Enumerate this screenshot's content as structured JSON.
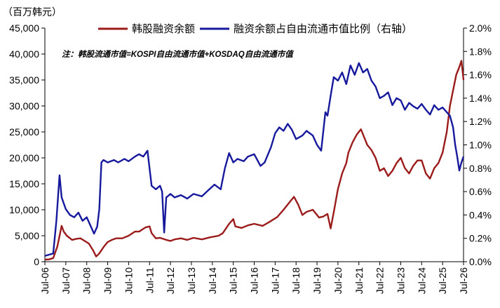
{
  "chart_data": {
    "type": "line",
    "title": "",
    "unit_label": "（百万韩元）",
    "note": "注：韩股流通市值=KOSPI自由流通市值+KOSDAQ自由流通市值",
    "legend_placement": "top",
    "grid": false,
    "x_tick_labels": [
      "Jul-06",
      "Jul-07",
      "Jul-08",
      "Jul-09",
      "Jul-10",
      "Jul-11",
      "Jul-12",
      "Jul-13",
      "Jul-14",
      "Jul-15",
      "Jul-16",
      "Jul-17",
      "Jul-18",
      "Jul-19",
      "Jul-20",
      "Jul-21",
      "Jul-22",
      "Jul-23",
      "Jul-24",
      "Jul-25",
      "Jul-26"
    ],
    "x_range": [
      2006.5,
      2026.5
    ],
    "y_left": {
      "min": 0,
      "max": 45000,
      "step": 5000,
      "tick_labels": [
        "0",
        "5,000",
        "10,000",
        "15,000",
        "20,000",
        "25,000",
        "30,000",
        "35,000",
        "40,000",
        "45,000"
      ]
    },
    "y_right": {
      "min": 0,
      "max": 2.0,
      "step": 0.2,
      "tick_labels": [
        "0.0%",
        "0.2%",
        "0.4%",
        "0.6%",
        "0.8%",
        "1.0%",
        "1.2%",
        "1.4%",
        "1.6%",
        "1.8%",
        "2.0%"
      ]
    },
    "series": [
      {
        "name": "韩股融资余额",
        "axis": "left",
        "color": "#9b1b1b",
        "points": [
          [
            2006.5,
            400
          ],
          [
            2006.7,
            450
          ],
          [
            2006.9,
            700
          ],
          [
            2007.1,
            3000
          ],
          [
            2007.3,
            6900
          ],
          [
            2007.4,
            5800
          ],
          [
            2007.55,
            5000
          ],
          [
            2007.8,
            4200
          ],
          [
            2008.0,
            4400
          ],
          [
            2008.2,
            4500
          ],
          [
            2008.4,
            4000
          ],
          [
            2008.6,
            3500
          ],
          [
            2008.8,
            2200
          ],
          [
            2008.95,
            1000
          ],
          [
            2009.1,
            1600
          ],
          [
            2009.3,
            2800
          ],
          [
            2009.5,
            3800
          ],
          [
            2009.7,
            4200
          ],
          [
            2009.9,
            4500
          ],
          [
            2010.2,
            4500
          ],
          [
            2010.5,
            5000
          ],
          [
            2010.8,
            5800
          ],
          [
            2011.0,
            5800
          ],
          [
            2011.3,
            6600
          ],
          [
            2011.5,
            6800
          ],
          [
            2011.6,
            5500
          ],
          [
            2011.8,
            4500
          ],
          [
            2012.0,
            4600
          ],
          [
            2012.3,
            4200
          ],
          [
            2012.5,
            4000
          ],
          [
            2012.7,
            4300
          ],
          [
            2013.0,
            4500
          ],
          [
            2013.3,
            4200
          ],
          [
            2013.6,
            4600
          ],
          [
            2014.0,
            4300
          ],
          [
            2014.4,
            4700
          ],
          [
            2014.8,
            5000
          ],
          [
            2015.0,
            5500
          ],
          [
            2015.3,
            7300
          ],
          [
            2015.5,
            8200
          ],
          [
            2015.6,
            6800
          ],
          [
            2015.9,
            6500
          ],
          [
            2016.2,
            7000
          ],
          [
            2016.5,
            7300
          ],
          [
            2016.9,
            6900
          ],
          [
            2017.2,
            7600
          ],
          [
            2017.6,
            8600
          ],
          [
            2017.9,
            10000
          ],
          [
            2018.2,
            11500
          ],
          [
            2018.4,
            12500
          ],
          [
            2018.6,
            11000
          ],
          [
            2018.8,
            9000
          ],
          [
            2019.0,
            9600
          ],
          [
            2019.3,
            10000
          ],
          [
            2019.6,
            8500
          ],
          [
            2019.8,
            8700
          ],
          [
            2020.0,
            9200
          ],
          [
            2020.15,
            6400
          ],
          [
            2020.3,
            9500
          ],
          [
            2020.5,
            14000
          ],
          [
            2020.7,
            17000
          ],
          [
            2020.9,
            19000
          ],
          [
            2021.0,
            21000
          ],
          [
            2021.2,
            23000
          ],
          [
            2021.4,
            24500
          ],
          [
            2021.6,
            25500
          ],
          [
            2021.75,
            24000
          ],
          [
            2021.9,
            22500
          ],
          [
            2022.1,
            21500
          ],
          [
            2022.3,
            20000
          ],
          [
            2022.5,
            17500
          ],
          [
            2022.7,
            18000
          ],
          [
            2022.9,
            16500
          ],
          [
            2023.1,
            17500
          ],
          [
            2023.3,
            19000
          ],
          [
            2023.5,
            20000
          ],
          [
            2023.7,
            18000
          ],
          [
            2023.9,
            17000
          ],
          [
            2024.1,
            18500
          ],
          [
            2024.3,
            19500
          ],
          [
            2024.5,
            19500
          ],
          [
            2024.7,
            17000
          ],
          [
            2024.9,
            16000
          ],
          [
            2025.1,
            18000
          ],
          [
            2025.3,
            19000
          ],
          [
            2025.5,
            21000
          ],
          [
            2025.7,
            25000
          ],
          [
            2025.85,
            30000
          ],
          [
            2026.0,
            33000
          ],
          [
            2026.15,
            36000
          ],
          [
            2026.3,
            37500
          ],
          [
            2026.4,
            38700
          ],
          [
            2026.5,
            35000
          ]
        ]
      },
      {
        "name": "融资余额占自由流通市值比例（右轴）",
        "axis": "right",
        "color": "#16199c",
        "points": [
          [
            2006.5,
            0.05
          ],
          [
            2006.7,
            0.06
          ],
          [
            2006.9,
            0.07
          ],
          [
            2007.05,
            0.35
          ],
          [
            2007.2,
            0.74
          ],
          [
            2007.3,
            0.55
          ],
          [
            2007.5,
            0.45
          ],
          [
            2007.7,
            0.4
          ],
          [
            2007.9,
            0.38
          ],
          [
            2008.1,
            0.42
          ],
          [
            2008.3,
            0.35
          ],
          [
            2008.5,
            0.38
          ],
          [
            2008.7,
            0.3
          ],
          [
            2008.85,
            0.24
          ],
          [
            2009.0,
            0.3
          ],
          [
            2009.1,
            0.45
          ],
          [
            2009.2,
            0.85
          ],
          [
            2009.3,
            0.87
          ],
          [
            2009.5,
            0.85
          ],
          [
            2009.8,
            0.87
          ],
          [
            2010.0,
            0.85
          ],
          [
            2010.3,
            0.88
          ],
          [
            2010.5,
            0.86
          ],
          [
            2010.8,
            0.9
          ],
          [
            2011.0,
            0.92
          ],
          [
            2011.2,
            0.9
          ],
          [
            2011.4,
            0.95
          ],
          [
            2011.6,
            0.65
          ],
          [
            2011.8,
            0.62
          ],
          [
            2012.0,
            0.65
          ],
          [
            2012.1,
            0.6
          ],
          [
            2012.2,
            0.25
          ],
          [
            2012.3,
            0.55
          ],
          [
            2012.5,
            0.58
          ],
          [
            2012.7,
            0.55
          ],
          [
            2013.0,
            0.57
          ],
          [
            2013.3,
            0.54
          ],
          [
            2013.6,
            0.58
          ],
          [
            2014.0,
            0.56
          ],
          [
            2014.3,
            0.61
          ],
          [
            2014.6,
            0.66
          ],
          [
            2014.9,
            0.62
          ],
          [
            2015.1,
            0.8
          ],
          [
            2015.3,
            0.93
          ],
          [
            2015.5,
            0.85
          ],
          [
            2015.7,
            0.88
          ],
          [
            2016.0,
            0.86
          ],
          [
            2016.2,
            0.9
          ],
          [
            2016.5,
            0.92
          ],
          [
            2016.8,
            0.82
          ],
          [
            2017.0,
            0.85
          ],
          [
            2017.3,
            0.98
          ],
          [
            2017.5,
            1.1
          ],
          [
            2017.7,
            1.15
          ],
          [
            2017.9,
            1.12
          ],
          [
            2018.1,
            1.18
          ],
          [
            2018.3,
            1.13
          ],
          [
            2018.5,
            1.05
          ],
          [
            2018.8,
            1.08
          ],
          [
            2019.0,
            1.12
          ],
          [
            2019.3,
            1.08
          ],
          [
            2019.5,
            1.0
          ],
          [
            2019.7,
            0.95
          ],
          [
            2019.9,
            1.28
          ],
          [
            2020.0,
            1.25
          ],
          [
            2020.15,
            1.42
          ],
          [
            2020.3,
            1.58
          ],
          [
            2020.5,
            1.55
          ],
          [
            2020.7,
            1.62
          ],
          [
            2020.9,
            1.52
          ],
          [
            2021.1,
            1.68
          ],
          [
            2021.3,
            1.6
          ],
          [
            2021.5,
            1.7
          ],
          [
            2021.7,
            1.62
          ],
          [
            2021.9,
            1.65
          ],
          [
            2022.1,
            1.55
          ],
          [
            2022.3,
            1.5
          ],
          [
            2022.5,
            1.4
          ],
          [
            2022.7,
            1.42
          ],
          [
            2022.9,
            1.45
          ],
          [
            2023.1,
            1.34
          ],
          [
            2023.3,
            1.4
          ],
          [
            2023.5,
            1.38
          ],
          [
            2023.7,
            1.3
          ],
          [
            2023.9,
            1.36
          ],
          [
            2024.1,
            1.33
          ],
          [
            2024.3,
            1.31
          ],
          [
            2024.5,
            1.35
          ],
          [
            2024.7,
            1.3
          ],
          [
            2024.9,
            1.26
          ],
          [
            2025.1,
            1.34
          ],
          [
            2025.3,
            1.3
          ],
          [
            2025.5,
            1.32
          ],
          [
            2025.7,
            1.28
          ],
          [
            2025.85,
            1.25
          ],
          [
            2026.0,
            1.15
          ],
          [
            2026.1,
            1.0
          ],
          [
            2026.2,
            0.9
          ],
          [
            2026.3,
            0.78
          ],
          [
            2026.4,
            0.85
          ],
          [
            2026.5,
            0.9
          ]
        ]
      }
    ]
  }
}
